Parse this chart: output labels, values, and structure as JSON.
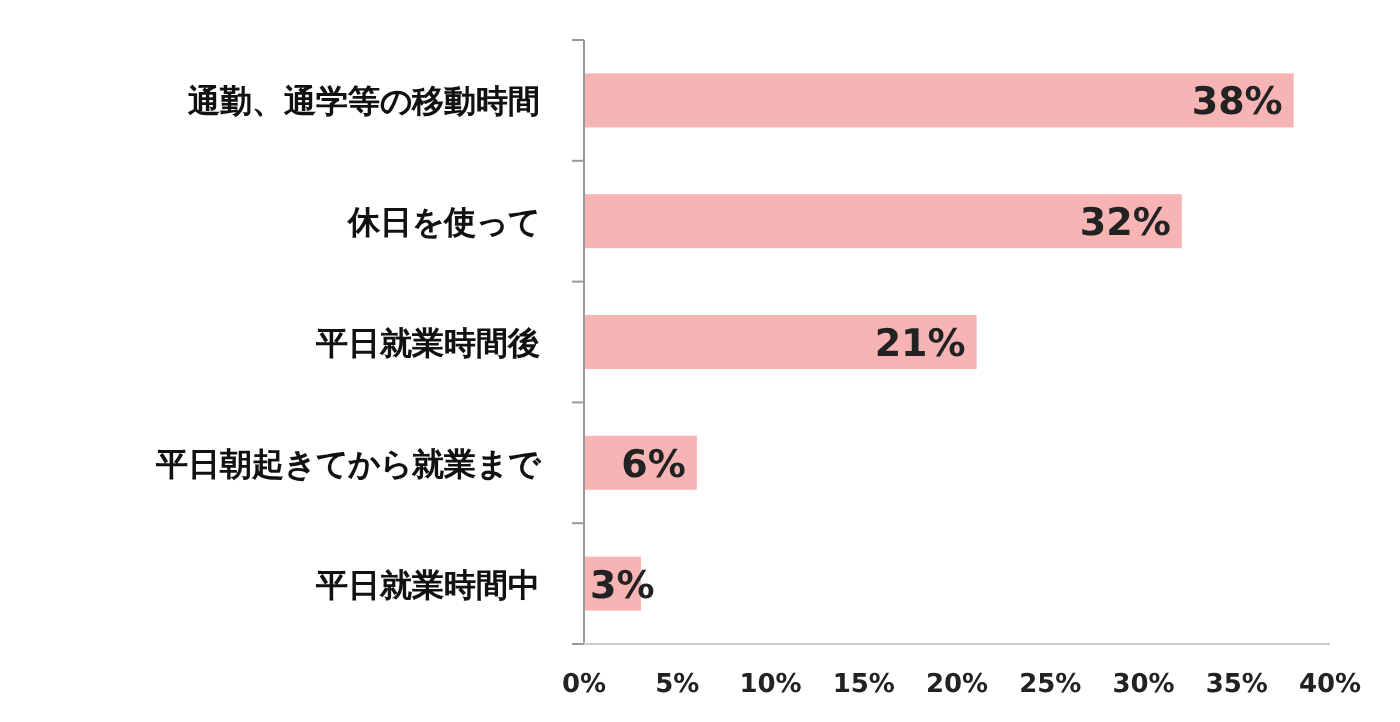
{
  "chart_data": {
    "type": "bar",
    "orientation": "horizontal",
    "categories": [
      "通勤、通学等の移動時間",
      "休日を使って",
      "平日就業時間後",
      "平日朝起きてから就業まで",
      "平日就業時間中"
    ],
    "values": [
      38,
      32,
      21,
      6,
      3
    ],
    "value_labels": [
      "38%",
      "32%",
      "21%",
      "6%",
      "3%"
    ],
    "color": "#f7b4b4",
    "xlim": [
      0,
      40
    ],
    "xticks": [
      {
        "value": 0,
        "label": "0%"
      },
      {
        "value": 5,
        "label": "5%"
      },
      {
        "value": 10,
        "label": "10%"
      },
      {
        "value": 15,
        "label": "15%"
      },
      {
        "value": 20,
        "label": "20%"
      },
      {
        "value": 25,
        "label": "25%"
      },
      {
        "value": 30,
        "label": "30%"
      },
      {
        "value": 35,
        "label": "35%"
      },
      {
        "value": 40,
        "label": "40%"
      }
    ]
  }
}
